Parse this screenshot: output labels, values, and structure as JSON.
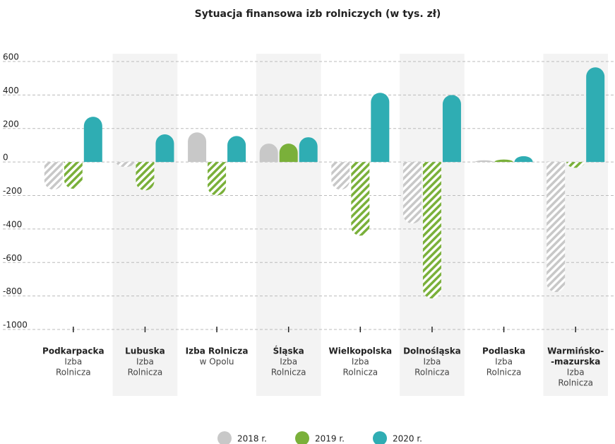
{
  "chart_data": {
    "type": "bar",
    "title": "Sytuacja finansowa izb rolniczych (w tys. zł)",
    "categories": [
      {
        "name": [
          "Podkarpacka"
        ],
        "sub": [
          "Izba",
          "Rolnicza"
        ]
      },
      {
        "name": [
          "Lubuska"
        ],
        "sub": [
          "Izba",
          "Rolnicza"
        ]
      },
      {
        "name": [
          "Izba Rolnicza"
        ],
        "sub": [
          "w Opolu"
        ]
      },
      {
        "name": [
          "Śląska"
        ],
        "sub": [
          "Izba",
          "Rolnicza"
        ]
      },
      {
        "name": [
          "Wielkopolska"
        ],
        "sub": [
          "Izba",
          "Rolnicza"
        ]
      },
      {
        "name": [
          "Dolnośląska"
        ],
        "sub": [
          "Izba",
          "Rolnicza"
        ]
      },
      {
        "name": [
          "Podlaska"
        ],
        "sub": [
          "Izba",
          "Rolnicza"
        ]
      },
      {
        "name": [
          "Warmińsko-",
          "-mazurska"
        ],
        "sub": [
          "Izba",
          "Rolnicza"
        ]
      }
    ],
    "series": [
      {
        "name": "2018 r.",
        "color": "#c8c8c8",
        "values": [
          -165,
          -30,
          177,
          110,
          -165,
          -367,
          10,
          -777
        ]
      },
      {
        "name": "2019 r.",
        "color": "#7ab03a",
        "values": [
          -160,
          -170,
          -200,
          110,
          -440,
          -815,
          15,
          -35
        ]
      },
      {
        "name": "2020 r.",
        "color": "#2fadb3",
        "values": [
          270,
          165,
          155,
          148,
          413,
          400,
          35,
          565
        ]
      }
    ],
    "ylim": [
      -1000,
      600
    ],
    "yticks": [
      600,
      400,
      200,
      0,
      -200,
      -400,
      -600,
      -800,
      -1000
    ],
    "grid": true,
    "negative_hatched": true,
    "alternate_bands": true,
    "legend": "bottom"
  }
}
